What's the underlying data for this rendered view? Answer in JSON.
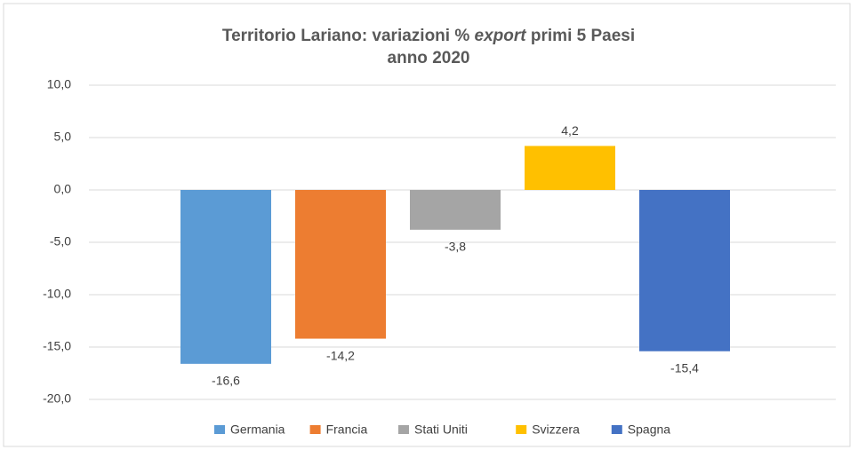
{
  "chart_data": {
    "type": "bar",
    "title": [
      "Territorio Lariano: variazioni %",
      "export",
      "primi 5 Paesi"
    ],
    "subtitle": "anno 2020",
    "categories": [
      null
    ],
    "series": [
      {
        "name": "Germania",
        "color": "#5b9bd5",
        "values": [
          -16.6
        ],
        "value_labels": [
          "-16,6"
        ]
      },
      {
        "name": "Francia",
        "color": "#ed7d31",
        "values": [
          -14.2
        ],
        "value_labels": [
          "-14,2"
        ]
      },
      {
        "name": "Stati Uniti",
        "color": "#a5a5a5",
        "values": [
          -3.8
        ],
        "value_labels": [
          "-3,8"
        ]
      },
      {
        "name": "Svizzera",
        "color": "#ffc000",
        "values": [
          4.2
        ],
        "value_labels": [
          "4,2"
        ]
      },
      {
        "name": "Spagna",
        "color": "#4472c4",
        "values": [
          -15.4
        ],
        "value_labels": [
          "-15,4"
        ]
      }
    ],
    "ylim": [
      -20,
      10
    ],
    "yticks": [
      {
        "value": 10,
        "label": "10,0"
      },
      {
        "value": 5,
        "label": "5,0"
      },
      {
        "value": 0,
        "label": "0,0"
      },
      {
        "value": -5,
        "label": "-5,0"
      },
      {
        "value": -10,
        "label": "-10,0"
      },
      {
        "value": -15,
        "label": "-15,0"
      },
      {
        "value": -20,
        "label": "-20,0"
      }
    ],
    "grid": true,
    "legend": "bottom"
  }
}
